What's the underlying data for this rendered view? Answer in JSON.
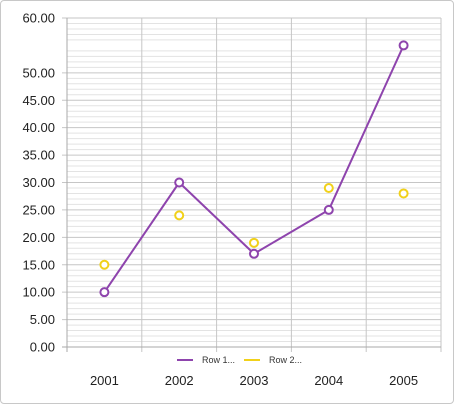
{
  "chart_data": {
    "type": "line",
    "categories": [
      "2001",
      "2002",
      "2003",
      "2004",
      "2005"
    ],
    "series": [
      {
        "name": "Row 1...",
        "values": [
          10,
          30,
          17,
          25,
          55
        ],
        "color": "#8e44ad",
        "style": "line-with-markers"
      },
      {
        "name": "Row 2...",
        "values": [
          15,
          24,
          19,
          29,
          28
        ],
        "color": "#f1d11a",
        "style": "markers-only"
      }
    ],
    "y_ticks": [
      "0.00",
      "5.00",
      "10.00",
      "15.00",
      "20.00",
      "25.00",
      "30.00",
      "35.00",
      "40.00",
      "45.00",
      "50.00",
      "60.00"
    ],
    "ylim": [
      0,
      60
    ],
    "grid": true,
    "minor_grid": true,
    "legend": "bottom-center"
  }
}
